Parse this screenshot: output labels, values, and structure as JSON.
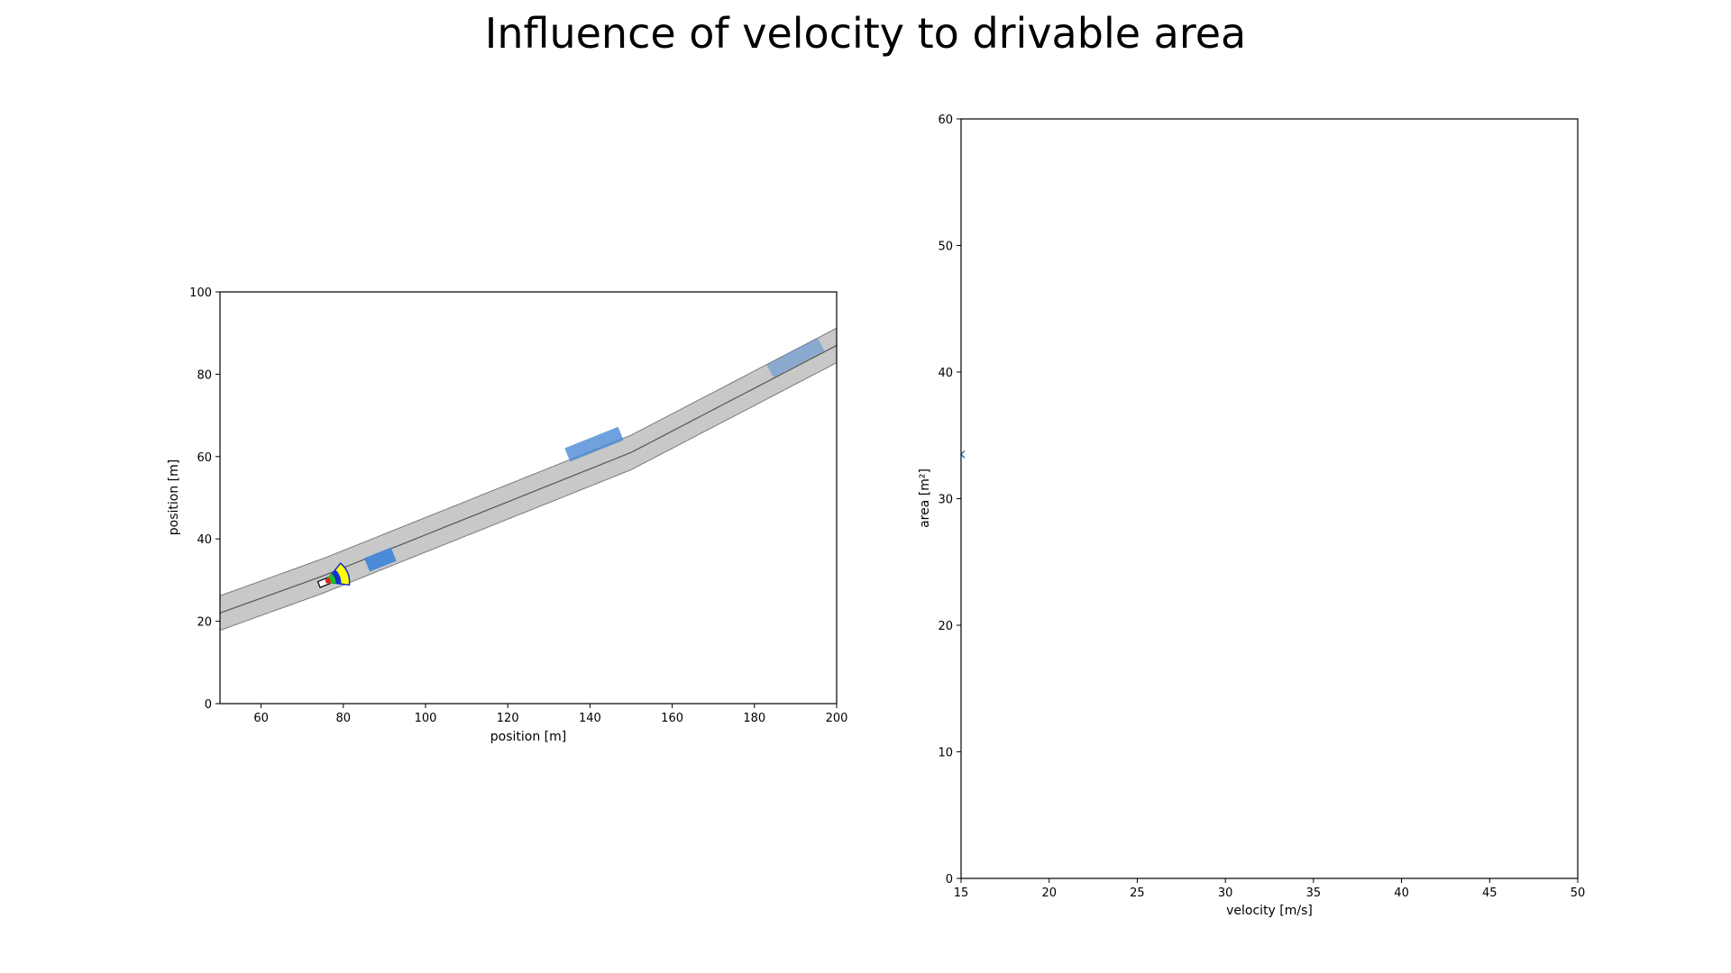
{
  "title": "Influence of velocity to drivable area",
  "chart_data": [
    {
      "type": "scatter",
      "description_role": "road scene",
      "xlabel": "position [m]",
      "ylabel": "position [m]",
      "xlim": [
        50,
        200
      ],
      "ylim": [
        0,
        100
      ],
      "xticks": [
        60,
        80,
        100,
        120,
        140,
        160,
        180,
        200
      ],
      "yticks": [
        0,
        20,
        40,
        60,
        80,
        100
      ],
      "road_centerline": [
        [
          50,
          22
        ],
        [
          75,
          31
        ],
        [
          100,
          41
        ],
        [
          150,
          61
        ],
        [
          200,
          87
        ]
      ],
      "road_half_width": 4.2,
      "colors": {
        "road": "#c8c8c8",
        "road_edge": "#7a7a7a",
        "centerline": "#555555",
        "obstacle": "#4a8ad6",
        "drivable_yellow": "#ffff00",
        "drivable_blue": "#1030d0",
        "drivable_green": "#20c020",
        "drivable_red": "#e02020"
      },
      "ego_vehicle": {
        "x": 75.5,
        "y": 29.5
      },
      "obstacles": [
        {
          "x": 89,
          "y": 35,
          "opacity": 1.0,
          "length": 7
        },
        {
          "x": 141,
          "y": 63,
          "opacity": 0.8,
          "length": 14
        },
        {
          "x": 190,
          "y": 84,
          "opacity": 0.5,
          "length": 14
        }
      ]
    },
    {
      "type": "scatter",
      "xlabel": "velocity [m/s]",
      "ylabel": "area [m²]",
      "xlim": [
        15,
        50
      ],
      "ylim": [
        0,
        60
      ],
      "xticks": [
        15,
        20,
        25,
        30,
        35,
        40,
        45,
        50
      ],
      "yticks": [
        0,
        10,
        20,
        30,
        40,
        50,
        60
      ],
      "points": [
        {
          "x": 15,
          "y": 33.5
        }
      ],
      "marker": "x",
      "marker_color": "#1f77b4"
    }
  ]
}
